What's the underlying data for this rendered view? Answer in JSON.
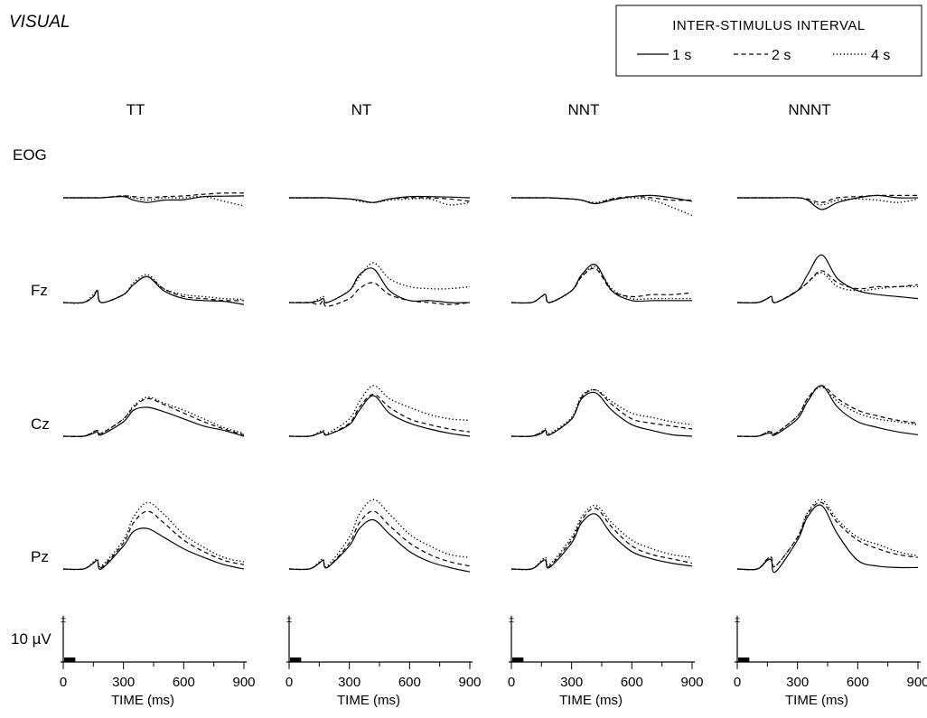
{
  "figure": {
    "title": "VISUAL",
    "legend": {
      "title": "INTER-STIMULUS INTERVAL",
      "position": "top-right",
      "items": [
        {
          "label": "1 s",
          "style": "solid"
        },
        {
          "label": "2 s",
          "style": "dashed"
        },
        {
          "label": "4 s",
          "style": "dotted"
        }
      ]
    },
    "scale_bar_label": "10 µV",
    "xlabel": "TIME (ms)",
    "xticks": [
      "0",
      "300",
      "600",
      "900"
    ]
  },
  "chart_data": {
    "type": "line",
    "x_unit": "ms",
    "xlim": [
      0,
      900
    ],
    "xticks": [
      0,
      300,
      600,
      900
    ],
    "xlabel": "TIME (ms)",
    "ylabel": "",
    "y_unit": "µV",
    "y_scale_bar": 10,
    "grid": false,
    "legend_placement": "top-right",
    "x": [
      0,
      100,
      150,
      170,
      190,
      300,
      350,
      420,
      500,
      600,
      700,
      800,
      900
    ],
    "panels": [
      "TT",
      "NT",
      "NNT",
      "NNNT"
    ],
    "channels": [
      "EOG",
      "Fz",
      "Cz",
      "Pz"
    ],
    "series": [
      {
        "panel": "TT",
        "channel": "EOG",
        "name": "1 s",
        "values": [
          0.0,
          0.0,
          0.0,
          0.0,
          0.0,
          0.5,
          -1.0,
          -2.0,
          -1.0,
          -0.8,
          0.5,
          0.7,
          0.8
        ]
      },
      {
        "panel": "TT",
        "channel": "EOG",
        "name": "2 s",
        "values": [
          0.0,
          0.0,
          0.0,
          0.0,
          0.0,
          0.8,
          0.5,
          0.0,
          0.5,
          0.8,
          1.5,
          2.0,
          2.0
        ]
      },
      {
        "panel": "TT",
        "channel": "EOG",
        "name": "4 s",
        "values": [
          0.0,
          0.0,
          0.0,
          0.0,
          0.0,
          0.8,
          0.0,
          -1.0,
          0.0,
          0.0,
          0.5,
          -1.5,
          -3.5
        ]
      },
      {
        "panel": "TT",
        "channel": "Fz",
        "name": "1 s",
        "values": [
          0.0,
          0.0,
          1.5,
          3.0,
          0.0,
          2.0,
          4.5,
          6.5,
          3.0,
          1.0,
          0.5,
          0.3,
          -0.5
        ]
      },
      {
        "panel": "TT",
        "channel": "Fz",
        "name": "2 s",
        "values": [
          0.0,
          0.0,
          1.5,
          3.0,
          0.0,
          2.0,
          4.5,
          6.5,
          3.5,
          1.5,
          1.0,
          0.5,
          0.5
        ]
      },
      {
        "panel": "TT",
        "channel": "Fz",
        "name": "4 s",
        "values": [
          0.0,
          0.0,
          2.0,
          3.0,
          0.0,
          2.0,
          5.0,
          7.0,
          3.5,
          2.0,
          1.5,
          1.0,
          0.8
        ]
      },
      {
        "panel": "TT",
        "channel": "Cz",
        "name": "1 s",
        "values": [
          0.0,
          0.0,
          1.0,
          1.5,
          0.5,
          5.0,
          9.0,
          10.0,
          8.5,
          6.0,
          3.5,
          2.0,
          0.0
        ]
      },
      {
        "panel": "TT",
        "channel": "Cz",
        "name": "2 s",
        "values": [
          0.0,
          0.0,
          1.5,
          2.0,
          1.0,
          6.0,
          10.0,
          13.0,
          11.0,
          8.0,
          5.0,
          2.5,
          0.5
        ]
      },
      {
        "panel": "TT",
        "channel": "Cz",
        "name": "4 s",
        "values": [
          0.0,
          0.0,
          1.5,
          2.0,
          1.0,
          6.0,
          10.5,
          13.5,
          11.5,
          9.0,
          6.0,
          3.0,
          1.0
        ]
      },
      {
        "panel": "TT",
        "channel": "Pz",
        "name": "1 s",
        "values": [
          0.0,
          0.0,
          2.0,
          3.0,
          0.0,
          8.0,
          13.0,
          14.0,
          11.0,
          7.0,
          4.0,
          1.5,
          0.0
        ]
      },
      {
        "panel": "TT",
        "channel": "Pz",
        "name": "2 s",
        "values": [
          0.0,
          0.0,
          2.0,
          3.0,
          0.5,
          9.0,
          16.0,
          20.0,
          16.0,
          10.0,
          6.0,
          3.0,
          1.5
        ]
      },
      {
        "panel": "TT",
        "channel": "Pz",
        "name": "4 s",
        "values": [
          0.0,
          0.0,
          2.5,
          3.5,
          1.0,
          10.0,
          18.0,
          23.0,
          19.0,
          12.0,
          7.5,
          4.0,
          2.5
        ]
      },
      {
        "panel": "NT",
        "channel": "EOG",
        "name": "1 s",
        "values": [
          0.0,
          0.0,
          0.0,
          0.0,
          0.0,
          -0.5,
          -1.0,
          -2.0,
          -0.5,
          0.5,
          0.5,
          0.3,
          0.0
        ]
      },
      {
        "panel": "NT",
        "channel": "EOG",
        "name": "2 s",
        "values": [
          0.0,
          0.0,
          0.0,
          0.0,
          0.0,
          -0.5,
          -1.0,
          -2.0,
          -0.5,
          0.0,
          0.0,
          -0.5,
          -1.5
        ]
      },
      {
        "panel": "NT",
        "channel": "EOG",
        "name": "4 s",
        "values": [
          0.0,
          0.0,
          0.0,
          0.0,
          0.0,
          -0.5,
          -1.5,
          -2.0,
          -1.0,
          -0.5,
          -0.5,
          -3.0,
          -2.0
        ]
      },
      {
        "panel": "NT",
        "channel": "Fz",
        "name": "1 s",
        "values": [
          0.0,
          0.0,
          0.5,
          1.0,
          0.0,
          3.0,
          7.0,
          8.5,
          3.0,
          0.5,
          0.5,
          0.0,
          0.0
        ]
      },
      {
        "panel": "NT",
        "channel": "Fz",
        "name": "2 s",
        "values": [
          0.0,
          0.0,
          -0.5,
          0.5,
          -1.0,
          1.0,
          3.5,
          5.0,
          2.0,
          0.5,
          0.0,
          -0.5,
          0.0
        ]
      },
      {
        "panel": "NT",
        "channel": "Fz",
        "name": "4 s",
        "values": [
          0.0,
          0.0,
          1.0,
          1.5,
          0.0,
          3.0,
          6.5,
          10.0,
          6.0,
          4.0,
          3.5,
          3.5,
          4.0
        ]
      },
      {
        "panel": "NT",
        "channel": "Cz",
        "name": "1 s",
        "values": [
          0.0,
          0.0,
          1.0,
          1.5,
          0.5,
          4.0,
          9.0,
          14.0,
          8.0,
          4.5,
          2.5,
          1.0,
          0.0
        ]
      },
      {
        "panel": "NT",
        "channel": "Cz",
        "name": "2 s",
        "values": [
          0.0,
          0.0,
          1.0,
          1.5,
          0.5,
          4.5,
          10.0,
          14.5,
          10.0,
          6.0,
          4.0,
          2.5,
          1.5
        ]
      },
      {
        "panel": "NT",
        "channel": "Cz",
        "name": "4 s",
        "values": [
          0.0,
          0.0,
          1.5,
          2.0,
          1.0,
          6.0,
          12.0,
          17.5,
          13.0,
          10.0,
          7.5,
          6.0,
          5.5
        ]
      },
      {
        "panel": "NT",
        "channel": "Pz",
        "name": "1 s",
        "values": [
          0.0,
          0.0,
          2.0,
          3.0,
          0.5,
          8.0,
          14.0,
          17.0,
          12.0,
          6.0,
          2.5,
          0.5,
          -1.0
        ]
      },
      {
        "panel": "NT",
        "channel": "Pz",
        "name": "2 s",
        "values": [
          0.0,
          0.0,
          2.0,
          3.0,
          0.5,
          9.0,
          16.0,
          20.0,
          15.0,
          9.0,
          5.0,
          2.5,
          1.0
        ]
      },
      {
        "panel": "NT",
        "channel": "Pz",
        "name": "4 s",
        "values": [
          0.0,
          0.0,
          2.5,
          3.5,
          1.0,
          11.0,
          19.0,
          24.0,
          19.0,
          12.0,
          8.0,
          5.0,
          4.0
        ]
      },
      {
        "panel": "NNT",
        "channel": "EOG",
        "name": "1 s",
        "values": [
          0.0,
          0.0,
          0.0,
          0.0,
          0.0,
          -0.5,
          -1.0,
          -2.5,
          -1.0,
          0.5,
          1.0,
          0.0,
          -1.5
        ]
      },
      {
        "panel": "NNT",
        "channel": "EOG",
        "name": "2 s",
        "values": [
          0.0,
          0.0,
          0.0,
          0.0,
          0.0,
          -0.5,
          -1.0,
          -2.5,
          -0.5,
          0.5,
          0.0,
          -1.0,
          -1.0
        ]
      },
      {
        "panel": "NNT",
        "channel": "EOG",
        "name": "4 s",
        "values": [
          0.0,
          0.0,
          0.0,
          0.0,
          0.0,
          -0.5,
          -1.0,
          -2.0,
          -0.5,
          0.0,
          -1.0,
          -4.0,
          -7.5
        ]
      },
      {
        "panel": "NNT",
        "channel": "Fz",
        "name": "1 s",
        "values": [
          0.0,
          0.0,
          1.5,
          2.0,
          0.0,
          3.0,
          7.0,
          9.5,
          3.0,
          0.5,
          0.5,
          0.5,
          0.5
        ]
      },
      {
        "panel": "NNT",
        "channel": "Fz",
        "name": "2 s",
        "values": [
          0.0,
          0.0,
          1.5,
          2.0,
          0.0,
          3.0,
          6.5,
          8.5,
          3.0,
          1.5,
          2.0,
          2.0,
          2.5
        ]
      },
      {
        "panel": "NNT",
        "channel": "Fz",
        "name": "4 s",
        "values": [
          0.0,
          0.0,
          1.5,
          2.0,
          0.0,
          3.0,
          6.5,
          9.0,
          3.5,
          1.0,
          1.0,
          1.0,
          1.0
        ]
      },
      {
        "panel": "NNT",
        "channel": "Cz",
        "name": "1 s",
        "values": [
          0.0,
          0.0,
          1.0,
          2.0,
          0.5,
          6.0,
          13.0,
          15.0,
          9.0,
          4.0,
          2.0,
          0.5,
          0.0
        ]
      },
      {
        "panel": "NNT",
        "channel": "Cz",
        "name": "2 s",
        "values": [
          0.0,
          0.0,
          1.5,
          2.0,
          0.5,
          6.0,
          13.5,
          16.0,
          11.0,
          6.0,
          4.5,
          3.5,
          2.5
        ]
      },
      {
        "panel": "NNT",
        "channel": "Cz",
        "name": "4 s",
        "values": [
          0.0,
          0.0,
          1.5,
          2.5,
          1.0,
          6.5,
          14.0,
          16.0,
          12.0,
          8.0,
          6.5,
          5.0,
          4.0
        ]
      },
      {
        "panel": "NNT",
        "channel": "Pz",
        "name": "1 s",
        "values": [
          0.0,
          0.0,
          2.5,
          3.0,
          0.5,
          9.0,
          16.0,
          19.0,
          12.0,
          6.0,
          3.5,
          2.0,
          1.0
        ]
      },
      {
        "panel": "NNT",
        "channel": "Pz",
        "name": "2 s",
        "values": [
          0.0,
          0.0,
          2.5,
          3.5,
          1.0,
          10.0,
          17.0,
          21.0,
          14.5,
          8.0,
          5.0,
          3.5,
          2.0
        ]
      },
      {
        "panel": "NNT",
        "channel": "Pz",
        "name": "4 s",
        "values": [
          0.0,
          0.0,
          3.0,
          4.0,
          1.5,
          11.0,
          18.0,
          22.0,
          16.0,
          10.0,
          7.0,
          5.0,
          4.0
        ]
      },
      {
        "panel": "NNNT",
        "channel": "EOG",
        "name": "1 s",
        "values": [
          0.0,
          0.0,
          0.0,
          0.0,
          0.0,
          0.0,
          -1.0,
          -5.0,
          -2.0,
          0.0,
          1.0,
          0.0,
          0.0
        ]
      },
      {
        "panel": "NNNT",
        "channel": "EOG",
        "name": "2 s",
        "values": [
          0.0,
          0.0,
          0.0,
          0.0,
          0.0,
          0.0,
          -0.5,
          -2.0,
          0.0,
          0.5,
          1.0,
          1.0,
          1.0
        ]
      },
      {
        "panel": "NNNT",
        "channel": "EOG",
        "name": "4 s",
        "values": [
          0.0,
          0.0,
          0.0,
          0.0,
          0.0,
          0.0,
          -1.0,
          -3.0,
          -1.0,
          -0.5,
          -1.0,
          -2.0,
          -0.5
        ]
      },
      {
        "panel": "NNNT",
        "channel": "Fz",
        "name": "1 s",
        "values": [
          0.0,
          0.0,
          1.0,
          1.5,
          0.0,
          3.0,
          7.0,
          12.0,
          6.0,
          3.0,
          2.0,
          1.5,
          1.0
        ]
      },
      {
        "panel": "NNNT",
        "channel": "Fz",
        "name": "2 s",
        "values": [
          0.0,
          0.0,
          1.0,
          1.5,
          0.0,
          3.0,
          5.0,
          8.0,
          5.0,
          3.5,
          4.0,
          4.0,
          4.5
        ]
      },
      {
        "panel": "NNNT",
        "channel": "Fz",
        "name": "4 s",
        "values": [
          0.0,
          0.0,
          1.0,
          1.5,
          0.0,
          3.0,
          5.0,
          7.5,
          4.0,
          3.0,
          3.5,
          4.0,
          4.0
        ]
      },
      {
        "panel": "NNNT",
        "channel": "Cz",
        "name": "1 s",
        "values": [
          0.0,
          0.0,
          1.0,
          1.0,
          0.5,
          6.0,
          12.0,
          17.5,
          10.0,
          5.0,
          3.0,
          1.5,
          0.5
        ]
      },
      {
        "panel": "NNNT",
        "channel": "Cz",
        "name": "2 s",
        "values": [
          0.0,
          0.0,
          1.5,
          1.5,
          1.0,
          7.0,
          13.0,
          17.5,
          13.0,
          9.0,
          7.0,
          5.5,
          4.5
        ]
      },
      {
        "panel": "NNNT",
        "channel": "Cz",
        "name": "4 s",
        "values": [
          0.0,
          0.0,
          1.5,
          1.5,
          1.0,
          7.0,
          13.0,
          17.0,
          12.0,
          8.0,
          6.0,
          5.0,
          4.0
        ]
      },
      {
        "panel": "NNNT",
        "channel": "Pz",
        "name": "1 s",
        "values": [
          0.0,
          0.0,
          3.0,
          3.0,
          -1.0,
          10.0,
          18.0,
          22.0,
          12.0,
          3.0,
          1.0,
          0.5,
          0.5
        ]
      },
      {
        "panel": "NNNT",
        "channel": "Pz",
        "name": "2 s",
        "values": [
          0.0,
          0.0,
          3.5,
          4.0,
          1.0,
          11.0,
          19.0,
          23.0,
          16.0,
          10.0,
          7.0,
          5.0,
          4.0
        ]
      },
      {
        "panel": "NNNT",
        "channel": "Pz",
        "name": "4 s",
        "values": [
          0.0,
          0.0,
          3.5,
          4.0,
          1.0,
          11.0,
          19.5,
          24.0,
          17.0,
          11.0,
          8.5,
          6.0,
          4.5
        ]
      }
    ]
  }
}
